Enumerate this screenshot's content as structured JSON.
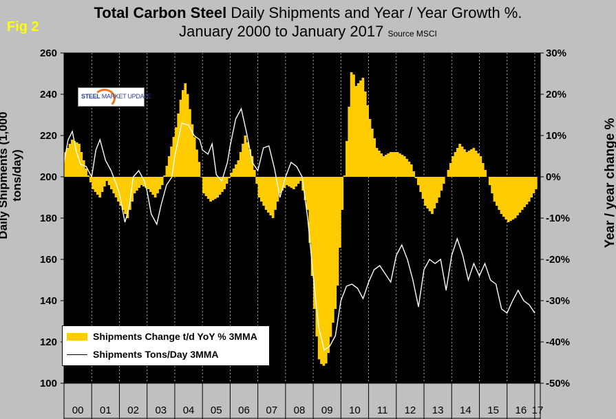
{
  "figure_label": "Fig 2",
  "title_bold": "Total Carbon Steel",
  "title_rest": " Daily Shipments and Year / Year Growth %.",
  "title_line2": "January 2000 to January 2017",
  "source": "Source MSCI",
  "logo": {
    "bold": "STEEL",
    "rest": " MARKET UPDATE"
  },
  "colors": {
    "bar": "#ffcc00",
    "line": "#ffffff",
    "plot_bg": "#000000",
    "page_bg": "#c0c0c0"
  },
  "chart_data": {
    "type": "bar",
    "xlabel": "",
    "ylabel": "Daily Shipments (1,000 tons/day)",
    "ylabel_right": "Year / year change %",
    "ylim": [
      100,
      260
    ],
    "ylim_right": [
      -50,
      30
    ],
    "yticks": [
      "100",
      "120",
      "140",
      "160",
      "180",
      "200",
      "220",
      "240",
      "260"
    ],
    "yticks_right": [
      "-50%",
      "-40%",
      "-30%",
      "-20%",
      "-10%",
      "0%",
      "10%",
      "20%",
      "30%"
    ],
    "categories": [
      "00",
      "01",
      "02",
      "03",
      "04",
      "05",
      "06",
      "07",
      "08",
      "09",
      "10",
      "11",
      "12",
      "13",
      "14",
      "15",
      "16",
      "17"
    ],
    "grid": false,
    "legend_position": "bottom-left",
    "series": [
      {
        "name": "Shipments Change t/d YoY % 3MMA",
        "kind": "bar",
        "axis": "right",
        "points": [
          [
            2000.0,
            6
          ],
          [
            2000.25,
            9
          ],
          [
            2000.5,
            8
          ],
          [
            2000.75,
            2
          ],
          [
            2001.0,
            -3
          ],
          [
            2001.25,
            -5
          ],
          [
            2001.5,
            -1
          ],
          [
            2001.75,
            -4
          ],
          [
            2002.0,
            -7
          ],
          [
            2002.25,
            -10
          ],
          [
            2002.5,
            -4
          ],
          [
            2002.75,
            -2
          ],
          [
            2003.0,
            -3
          ],
          [
            2003.25,
            -5
          ],
          [
            2003.5,
            -2
          ],
          [
            2003.75,
            5
          ],
          [
            2004.0,
            12
          ],
          [
            2004.2,
            20
          ],
          [
            2004.35,
            23
          ],
          [
            2004.6,
            12
          ],
          [
            2004.85,
            3
          ],
          [
            2005.0,
            -4
          ],
          [
            2005.25,
            -6
          ],
          [
            2005.5,
            -5
          ],
          [
            2005.75,
            -3
          ],
          [
            2006.0,
            1
          ],
          [
            2006.25,
            4
          ],
          [
            2006.5,
            10
          ],
          [
            2006.75,
            5
          ],
          [
            2007.0,
            -5
          ],
          [
            2007.25,
            -8
          ],
          [
            2007.5,
            -10
          ],
          [
            2007.75,
            -4
          ],
          [
            2008.0,
            -2
          ],
          [
            2008.25,
            -3
          ],
          [
            2008.5,
            -1
          ],
          [
            2008.75,
            -8
          ],
          [
            2009.0,
            -32
          ],
          [
            2009.15,
            -44
          ],
          [
            2009.3,
            -46
          ],
          [
            2009.45,
            -45
          ],
          [
            2009.6,
            -38
          ],
          [
            2009.8,
            -30
          ],
          [
            2010.0,
            -8
          ],
          [
            2010.2,
            12
          ],
          [
            2010.35,
            27
          ],
          [
            2010.5,
            22
          ],
          [
            2010.75,
            24
          ],
          [
            2011.0,
            14
          ],
          [
            2011.25,
            7
          ],
          [
            2011.5,
            5
          ],
          [
            2011.75,
            6
          ],
          [
            2012.0,
            6
          ],
          [
            2012.25,
            5
          ],
          [
            2012.5,
            3
          ],
          [
            2012.75,
            -2
          ],
          [
            2013.0,
            -7
          ],
          [
            2013.25,
            -9
          ],
          [
            2013.5,
            -5
          ],
          [
            2013.75,
            0
          ],
          [
            2014.0,
            5
          ],
          [
            2014.25,
            8
          ],
          [
            2014.5,
            6
          ],
          [
            2014.75,
            7
          ],
          [
            2015.0,
            5
          ],
          [
            2015.25,
            0
          ],
          [
            2015.5,
            -6
          ],
          [
            2015.75,
            -9
          ],
          [
            2016.0,
            -11
          ],
          [
            2016.25,
            -10
          ],
          [
            2016.5,
            -8
          ],
          [
            2016.75,
            -6
          ],
          [
            2017.0,
            -3
          ]
        ]
      },
      {
        "name": "Shipments Tons/Day 3MMA",
        "kind": "line",
        "axis": "left",
        "points": [
          [
            2000.0,
            207
          ],
          [
            2000.15,
            218
          ],
          [
            2000.3,
            222
          ],
          [
            2000.45,
            212
          ],
          [
            2000.6,
            206
          ],
          [
            2000.8,
            205
          ],
          [
            2001.0,
            200
          ],
          [
            2001.15,
            213
          ],
          [
            2001.3,
            218
          ],
          [
            2001.5,
            208
          ],
          [
            2001.7,
            203
          ],
          [
            2001.9,
            196
          ],
          [
            2002.0,
            192
          ],
          [
            2002.2,
            178
          ],
          [
            2002.35,
            185
          ],
          [
            2002.5,
            200
          ],
          [
            2002.7,
            203
          ],
          [
            2002.9,
            198
          ],
          [
            2003.0,
            193
          ],
          [
            2003.15,
            182
          ],
          [
            2003.35,
            177
          ],
          [
            2003.5,
            186
          ],
          [
            2003.7,
            196
          ],
          [
            2003.9,
            200
          ],
          [
            2004.0,
            210
          ],
          [
            2004.25,
            226
          ],
          [
            2004.5,
            225
          ],
          [
            2004.7,
            220
          ],
          [
            2004.9,
            218
          ],
          [
            2005.0,
            213
          ],
          [
            2005.2,
            211
          ],
          [
            2005.35,
            216
          ],
          [
            2005.5,
            201
          ],
          [
            2005.7,
            198
          ],
          [
            2005.9,
            207
          ],
          [
            2006.0,
            215
          ],
          [
            2006.2,
            228
          ],
          [
            2006.4,
            233
          ],
          [
            2006.6,
            221
          ],
          [
            2006.8,
            207
          ],
          [
            2007.0,
            203
          ],
          [
            2007.2,
            214
          ],
          [
            2007.4,
            215
          ],
          [
            2007.6,
            204
          ],
          [
            2007.8,
            190
          ],
          [
            2008.0,
            200
          ],
          [
            2008.2,
            207
          ],
          [
            2008.4,
            205
          ],
          [
            2008.6,
            200
          ],
          [
            2008.8,
            180
          ],
          [
            2009.0,
            152
          ],
          [
            2009.2,
            127
          ],
          [
            2009.4,
            116
          ],
          [
            2009.6,
            118
          ],
          [
            2009.8,
            123
          ],
          [
            2010.0,
            140
          ],
          [
            2010.2,
            147
          ],
          [
            2010.4,
            148
          ],
          [
            2010.6,
            146
          ],
          [
            2010.8,
            141
          ],
          [
            2011.0,
            149
          ],
          [
            2011.2,
            155
          ],
          [
            2011.4,
            157
          ],
          [
            2011.6,
            153
          ],
          [
            2011.8,
            149
          ],
          [
            2012.0,
            162
          ],
          [
            2012.2,
            167
          ],
          [
            2012.4,
            160
          ],
          [
            2012.6,
            150
          ],
          [
            2012.8,
            137
          ],
          [
            2013.0,
            155
          ],
          [
            2013.2,
            160
          ],
          [
            2013.4,
            158
          ],
          [
            2013.6,
            160
          ],
          [
            2013.8,
            145
          ],
          [
            2014.0,
            162
          ],
          [
            2014.2,
            170
          ],
          [
            2014.4,
            162
          ],
          [
            2014.6,
            150
          ],
          [
            2014.8,
            158
          ],
          [
            2015.0,
            152
          ],
          [
            2015.2,
            158
          ],
          [
            2015.4,
            150
          ],
          [
            2015.6,
            148
          ],
          [
            2015.8,
            136
          ],
          [
            2016.0,
            134
          ],
          [
            2016.2,
            140
          ],
          [
            2016.4,
            145
          ],
          [
            2016.6,
            140
          ],
          [
            2016.8,
            138
          ],
          [
            2017.0,
            134
          ]
        ]
      }
    ]
  }
}
